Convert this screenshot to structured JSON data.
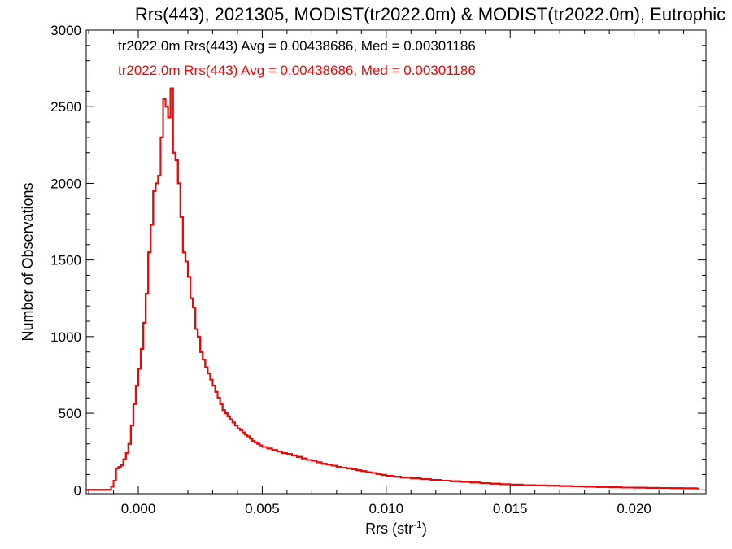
{
  "chart_data": {
    "type": "histogram",
    "title": "Rrs(443), 2021305, MODIST(tr2022.0m) & MODIST(tr2022.0m), Eutrophic",
    "xlabel": "Rrs (str",
    "xlabel_superscript": "-1",
    "xlabel_suffix": ")",
    "ylabel": "Number of Observations",
    "xlim": [
      -0.0021,
      0.0229
    ],
    "ylim": [
      -25,
      3000
    ],
    "xticks": [
      0.0,
      0.005,
      0.01,
      0.015,
      0.02
    ],
    "xtick_labels": [
      "0.000",
      "0.005",
      "0.010",
      "0.015",
      "0.020"
    ],
    "yticks": [
      0,
      500,
      1000,
      1500,
      2000,
      2500,
      3000
    ],
    "ytick_labels": [
      "0",
      "500",
      "1000",
      "1500",
      "2000",
      "2500",
      "3000"
    ],
    "bin_width": 0.0001,
    "legend": [
      {
        "text": "tr2022.0m Rrs(443) Avg = 0.00438686, Med = 0.00301186",
        "color": "#000000"
      },
      {
        "text": "tr2022.0m Rrs(443) Avg = 0.00438686, Med = 0.00301186",
        "color": "#ff0000"
      }
    ],
    "series": [
      {
        "color": "#000000",
        "x": [
          -0.0021,
          -0.0011,
          -0.001,
          -0.0009,
          -0.0008,
          -0.0007,
          -0.0006,
          -0.0005,
          -0.0004,
          -0.0003,
          -0.0002,
          -0.0001,
          0.0,
          0.0001,
          0.0002,
          0.0003,
          0.0004,
          0.0005,
          0.0006,
          0.0007,
          0.0008,
          0.0009,
          0.001,
          0.0011,
          0.0012,
          0.0013,
          0.0014,
          0.0015,
          0.0016,
          0.0017,
          0.0018,
          0.0019,
          0.002,
          0.0021,
          0.0022,
          0.0023,
          0.0024,
          0.0025,
          0.0026,
          0.0027,
          0.0028,
          0.0029,
          0.003,
          0.0031,
          0.0032,
          0.0033,
          0.0034,
          0.0035,
          0.0036,
          0.0037,
          0.0038,
          0.0039,
          0.004,
          0.0041,
          0.0042,
          0.0043,
          0.0044,
          0.0045,
          0.0046,
          0.0047,
          0.0048,
          0.0049,
          0.005,
          0.0052,
          0.0054,
          0.0056,
          0.0058,
          0.006,
          0.0062,
          0.0064,
          0.0066,
          0.0068,
          0.007,
          0.0072,
          0.0074,
          0.0076,
          0.0078,
          0.008,
          0.0082,
          0.0084,
          0.0086,
          0.0088,
          0.009,
          0.0092,
          0.0094,
          0.0096,
          0.0098,
          0.01,
          0.0103,
          0.0106,
          0.011,
          0.0114,
          0.0118,
          0.0122,
          0.0126,
          0.013,
          0.0134,
          0.0138,
          0.0142,
          0.0146,
          0.015,
          0.0155,
          0.016,
          0.0165,
          0.017,
          0.0175,
          0.018,
          0.0185,
          0.019,
          0.0195,
          0.02,
          0.0205,
          0.021,
          0.0215,
          0.022,
          0.0225
        ],
        "y": [
          0,
          20,
          60,
          140,
          150,
          160,
          200,
          240,
          300,
          420,
          560,
          680,
          790,
          920,
          1090,
          1280,
          1550,
          1730,
          1950,
          2000,
          2050,
          2300,
          2550,
          2500,
          2430,
          2620,
          2200,
          2150,
          2000,
          1780,
          1550,
          1490,
          1390,
          1250,
          1190,
          1050,
          1000,
          900,
          850,
          800,
          760,
          720,
          680,
          640,
          600,
          560,
          520,
          500,
          480,
          460,
          440,
          420,
          400,
          390,
          375,
          360,
          350,
          335,
          320,
          310,
          300,
          290,
          280,
          270,
          260,
          250,
          240,
          235,
          225,
          215,
          205,
          195,
          190,
          180,
          170,
          165,
          158,
          150,
          145,
          140,
          135,
          128,
          122,
          115,
          110,
          104,
          98,
          92,
          86,
          80,
          75,
          70,
          65,
          60,
          56,
          52,
          48,
          44,
          40,
          37,
          34,
          31,
          29,
          27,
          25,
          23,
          21,
          19,
          17,
          15,
          14,
          13,
          12,
          11,
          10,
          9
        ]
      },
      {
        "color": "#ff0000",
        "x": [
          -0.0021,
          -0.0011,
          -0.001,
          -0.0009,
          -0.0008,
          -0.0007,
          -0.0006,
          -0.0005,
          -0.0004,
          -0.0003,
          -0.0002,
          -0.0001,
          0.0,
          0.0001,
          0.0002,
          0.0003,
          0.0004,
          0.0005,
          0.0006,
          0.0007,
          0.0008,
          0.0009,
          0.001,
          0.0011,
          0.0012,
          0.0013,
          0.0014,
          0.0015,
          0.0016,
          0.0017,
          0.0018,
          0.0019,
          0.002,
          0.0021,
          0.0022,
          0.0023,
          0.0024,
          0.0025,
          0.0026,
          0.0027,
          0.0028,
          0.0029,
          0.003,
          0.0031,
          0.0032,
          0.0033,
          0.0034,
          0.0035,
          0.0036,
          0.0037,
          0.0038,
          0.0039,
          0.004,
          0.0041,
          0.0042,
          0.0043,
          0.0044,
          0.0045,
          0.0046,
          0.0047,
          0.0048,
          0.0049,
          0.005,
          0.0052,
          0.0054,
          0.0056,
          0.0058,
          0.006,
          0.0062,
          0.0064,
          0.0066,
          0.0068,
          0.007,
          0.0072,
          0.0074,
          0.0076,
          0.0078,
          0.008,
          0.0082,
          0.0084,
          0.0086,
          0.0088,
          0.009,
          0.0092,
          0.0094,
          0.0096,
          0.0098,
          0.01,
          0.0103,
          0.0106,
          0.011,
          0.0114,
          0.0118,
          0.0122,
          0.0126,
          0.013,
          0.0134,
          0.0138,
          0.0142,
          0.0146,
          0.015,
          0.0155,
          0.016,
          0.0165,
          0.017,
          0.0175,
          0.018,
          0.0185,
          0.019,
          0.0195,
          0.02,
          0.0205,
          0.021,
          0.0215,
          0.022,
          0.0225
        ],
        "y": [
          0,
          20,
          60,
          140,
          150,
          160,
          200,
          240,
          300,
          420,
          560,
          680,
          790,
          920,
          1090,
          1280,
          1550,
          1730,
          1950,
          2000,
          2050,
          2300,
          2550,
          2500,
          2430,
          2620,
          2200,
          2150,
          2000,
          1780,
          1550,
          1490,
          1390,
          1250,
          1190,
          1050,
          1000,
          900,
          850,
          800,
          760,
          720,
          680,
          640,
          600,
          560,
          520,
          500,
          480,
          460,
          440,
          420,
          400,
          390,
          375,
          360,
          350,
          335,
          320,
          310,
          300,
          290,
          280,
          270,
          260,
          250,
          240,
          235,
          225,
          215,
          205,
          195,
          190,
          180,
          170,
          165,
          158,
          150,
          145,
          140,
          135,
          128,
          122,
          115,
          110,
          104,
          98,
          92,
          86,
          80,
          75,
          70,
          65,
          60,
          56,
          52,
          48,
          44,
          40,
          37,
          34,
          31,
          29,
          27,
          25,
          23,
          21,
          19,
          17,
          15,
          14,
          13,
          12,
          11,
          10,
          9
        ]
      }
    ]
  }
}
